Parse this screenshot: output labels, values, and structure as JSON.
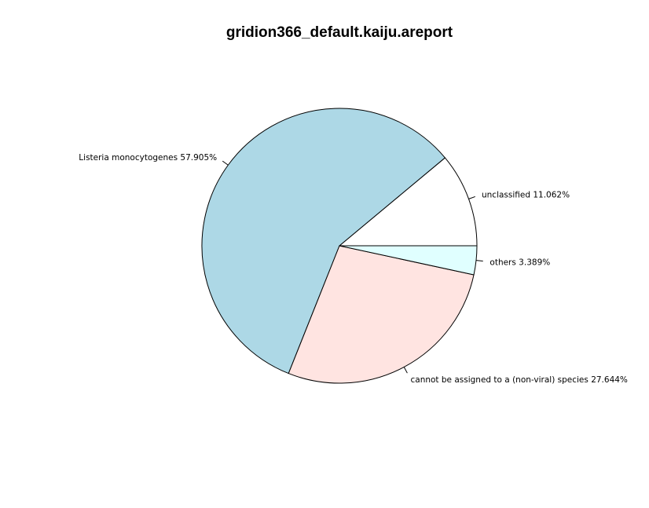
{
  "chart_data": {
    "type": "pie",
    "title": "gridion366_default.kaiju.areport",
    "slices": [
      {
        "label": "unclassified",
        "value": 11.062,
        "display": "unclassified 11.062%",
        "color": "#FFFFFF"
      },
      {
        "label": "Listeria monocytogenes",
        "value": 57.905,
        "display": "Listeria monocytogenes 57.905%",
        "color": "#ADD8E6"
      },
      {
        "label": "cannot be assigned to a (non-viral) species",
        "value": 27.644,
        "display": "cannot be assigned to a (non-viral) species 27.644%",
        "color": "#FFE4E1"
      },
      {
        "label": "others",
        "value": 3.389,
        "display": "others 3.389%",
        "color": "#E0FFFF"
      }
    ],
    "direction": "counterclockwise",
    "start": "3 o'clock"
  }
}
